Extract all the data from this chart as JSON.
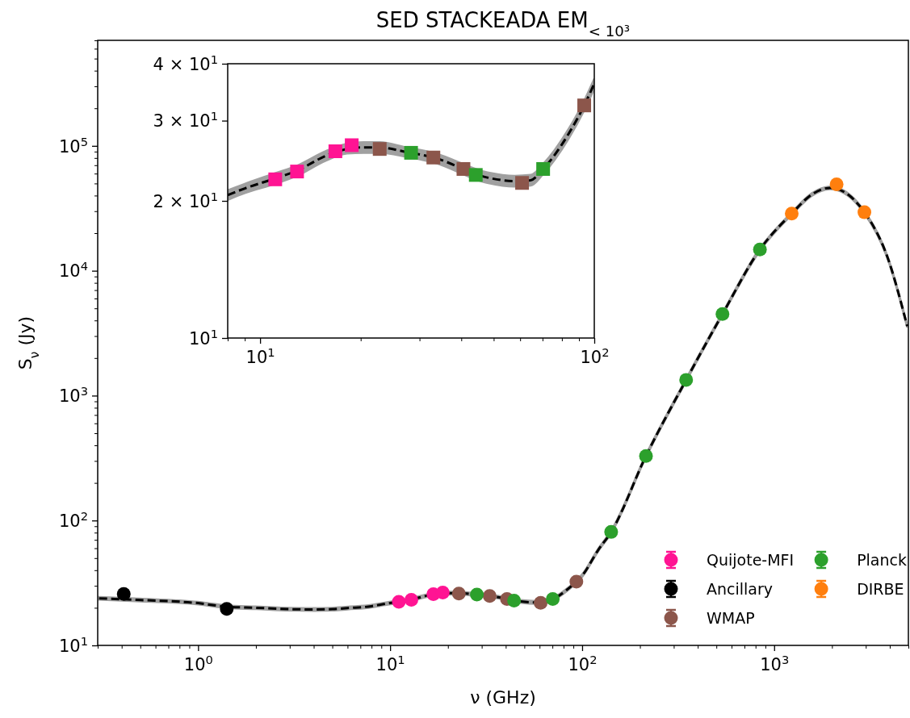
{
  "chart_data": [
    {
      "type": "scatter",
      "title": "SED STACKEADA EM$_{< 10³}$",
      "xlabel": "ν (GHz)",
      "ylabel": "S$_{ν}$ (Jy)",
      "log": "xy",
      "xlim": [
        0.3,
        5000
      ],
      "ylim": [
        10,
        700000
      ],
      "xticks": [
        {
          "value": 0.3,
          "label": null
        },
        {
          "value": 0.4,
          "label": null
        },
        {
          "value": 0.5,
          "label": null
        },
        {
          "value": 0.6,
          "label": null
        },
        {
          "value": 0.7,
          "label": null
        },
        {
          "value": 0.8,
          "label": null
        },
        {
          "value": 0.9,
          "label": null
        },
        {
          "value": 1,
          "label": "10$^{0}$"
        },
        {
          "value": 2,
          "label": null
        },
        {
          "value": 3,
          "label": null
        },
        {
          "value": 4,
          "label": null
        },
        {
          "value": 5,
          "label": null
        },
        {
          "value": 6,
          "label": null
        },
        {
          "value": 7,
          "label": null
        },
        {
          "value": 8,
          "label": null
        },
        {
          "value": 9,
          "label": null
        },
        {
          "value": 10,
          "label": "10$^{1}$"
        },
        {
          "value": 20,
          "label": null
        },
        {
          "value": 30,
          "label": null
        },
        {
          "value": 40,
          "label": null
        },
        {
          "value": 50,
          "label": null
        },
        {
          "value": 60,
          "label": null
        },
        {
          "value": 70,
          "label": null
        },
        {
          "value": 80,
          "label": null
        },
        {
          "value": 90,
          "label": null
        },
        {
          "value": 100,
          "label": "10$^{2}$"
        },
        {
          "value": 200,
          "label": null
        },
        {
          "value": 300,
          "label": null
        },
        {
          "value": 400,
          "label": null
        },
        {
          "value": 500,
          "label": null
        },
        {
          "value": 600,
          "label": null
        },
        {
          "value": 700,
          "label": null
        },
        {
          "value": 800,
          "label": null
        },
        {
          "value": 900,
          "label": null
        },
        {
          "value": 1000,
          "label": "10$^{3}$"
        },
        {
          "value": 2000,
          "label": null
        },
        {
          "value": 3000,
          "label": null
        },
        {
          "value": 4000,
          "label": null
        },
        {
          "value": 5000,
          "label": null
        }
      ],
      "yticks": [
        {
          "value": 10,
          "label": "10$^{1}$"
        },
        {
          "value": 20,
          "label": null
        },
        {
          "value": 30,
          "label": null
        },
        {
          "value": 40,
          "label": null
        },
        {
          "value": 50,
          "label": null
        },
        {
          "value": 60,
          "label": null
        },
        {
          "value": 70,
          "label": null
        },
        {
          "value": 80,
          "label": null
        },
        {
          "value": 90,
          "label": null
        },
        {
          "value": 100,
          "label": "10$^{2}$"
        },
        {
          "value": 200,
          "label": null
        },
        {
          "value": 300,
          "label": null
        },
        {
          "value": 400,
          "label": null
        },
        {
          "value": 500,
          "label": null
        },
        {
          "value": 600,
          "label": null
        },
        {
          "value": 700,
          "label": null
        },
        {
          "value": 800,
          "label": null
        },
        {
          "value": 900,
          "label": null
        },
        {
          "value": 1000,
          "label": "10$^{3}$"
        },
        {
          "value": 2000,
          "label": null
        },
        {
          "value": 3000,
          "label": null
        },
        {
          "value": 4000,
          "label": null
        },
        {
          "value": 5000,
          "label": null
        },
        {
          "value": 6000,
          "label": null
        },
        {
          "value": 7000,
          "label": null
        },
        {
          "value": 8000,
          "label": null
        },
        {
          "value": 9000,
          "label": null
        },
        {
          "value": 10000,
          "label": "10$^{4}$"
        },
        {
          "value": 20000,
          "label": null
        },
        {
          "value": 30000,
          "label": null
        },
        {
          "value": 40000,
          "label": null
        },
        {
          "value": 50000,
          "label": null
        },
        {
          "value": 60000,
          "label": null
        },
        {
          "value": 70000,
          "label": null
        },
        {
          "value": 80000,
          "label": null
        },
        {
          "value": 90000,
          "label": null
        },
        {
          "value": 100000,
          "label": "10$^{5}$"
        },
        {
          "value": 200000,
          "label": null
        },
        {
          "value": 300000,
          "label": null
        },
        {
          "value": 400000,
          "label": null
        },
        {
          "value": 500000,
          "label": null
        },
        {
          "value": 600000,
          "label": null
        },
        {
          "value": 700000,
          "label": null
        }
      ],
      "grid": false,
      "legend": "bottom right",
      "marker": "circle",
      "series": [
        {
          "type": "line",
          "color": "#000000",
          "line_style": "dashed",
          "marker": "none",
          "x": [
            0.305,
            0.5,
            1,
            1.41,
            2,
            3,
            4.04,
            5,
            6,
            8,
            9,
            11.1,
            12.9,
            15.7,
            20.4,
            22.8,
            27.4,
            33,
            39.7,
            47.9,
            57.7,
            70.3,
            83.6,
            93.3,
            100,
            121,
            141.6,
            215,
            348,
            538,
            843,
            1234,
            1574,
            1954,
            2951,
            3890,
            4930
          ],
          "values": [
            23.8,
            23.1,
            21.8,
            20.4,
            20.0,
            19.5,
            19.4,
            19.5,
            19.9,
            20.6,
            21.3,
            22.4,
            23.3,
            25.1,
            26.2,
            26.2,
            25.6,
            24.9,
            23.8,
            22.5,
            22.1,
            23.5,
            28.0,
            32.4,
            36.2,
            57.8,
            81,
            329,
            1337,
            4500,
            14800,
            28700,
            40900,
            46100,
            29400,
            12850,
            3600
          ],
          "lower": [
            23.2,
            22.5,
            21.3,
            19.9,
            19.5,
            19.0,
            18.9,
            19.0,
            19.4,
            20.1,
            20.8,
            21.8,
            22.7,
            24.5,
            25.5,
            25.5,
            25.0,
            24.3,
            23.2,
            21.9,
            21.5,
            22.9,
            27.3,
            31.6,
            35.3,
            56.4,
            79,
            321,
            1304,
            4390,
            14430,
            27980,
            39880,
            44950,
            28670,
            12530,
            3510
          ],
          "upper": [
            24.4,
            23.7,
            22.3,
            20.9,
            20.5,
            20.0,
            19.9,
            20.0,
            20.4,
            21.1,
            21.8,
            23.0,
            23.9,
            25.7,
            26.9,
            26.9,
            26.2,
            25.5,
            24.4,
            23.1,
            22.7,
            24.1,
            28.7,
            33.2,
            37.1,
            59.2,
            83,
            337,
            1370,
            4610,
            15170,
            29420,
            41920,
            47250,
            30140,
            13170,
            3690
          ]
        },
        {
          "name": "Quijote-MFI",
          "color": "#ff1493",
          "x": [
            11.1,
            12.9,
            16.8,
            18.8
          ],
          "values": [
            22.3,
            23.2,
            25.7,
            26.5
          ]
        },
        {
          "name": "Ancillary",
          "color": "#000000",
          "x": [
            0.41,
            1.41
          ],
          "values": [
            25.8,
            19.6
          ]
        },
        {
          "name": "WMAP",
          "color": "#8c564b",
          "x": [
            22.8,
            33,
            40.6,
            60.8,
            93.3
          ],
          "values": [
            26.0,
            24.9,
            23.5,
            21.9,
            32.4
          ]
        },
        {
          "name": "Planck",
          "color": "#2ca02c",
          "x": [
            28.3,
            44.2,
            70.3,
            141.6,
            215,
            348,
            538,
            843
          ],
          "values": [
            25.5,
            22.8,
            23.5,
            81,
            329,
            1337,
            4500,
            14800
          ]
        },
        {
          "name": "DIRBE",
          "color": "#ff7f0e",
          "x": [
            1234,
            2114,
            2951
          ],
          "values": [
            28700,
            49200,
            29400
          ]
        }
      ]
    },
    {
      "type": "scatter",
      "log": "xy",
      "xlim": [
        8,
        100
      ],
      "ylim": [
        10,
        40
      ],
      "xticks": [
        {
          "value": 8,
          "label": null
        },
        {
          "value": 9,
          "label": null
        },
        {
          "value": 10,
          "label": "10$^{1}$"
        },
        {
          "value": 20,
          "label": null
        },
        {
          "value": 30,
          "label": null
        },
        {
          "value": 40,
          "label": null
        },
        {
          "value": 50,
          "label": null
        },
        {
          "value": 60,
          "label": null
        },
        {
          "value": 70,
          "label": null
        },
        {
          "value": 80,
          "label": null
        },
        {
          "value": 90,
          "label": null
        },
        {
          "value": 100,
          "label": "10$^{2}$"
        }
      ],
      "yticks": [
        {
          "value": 10,
          "label": "10$^{1}$"
        },
        {
          "value": 20,
          "label": "2 × 10$^{1}$"
        },
        {
          "value": 30,
          "label": "3 × 10$^{1}$"
        },
        {
          "value": 40,
          "label": "4 × 10$^{1}$"
        }
      ],
      "grid": false,
      "legend": false,
      "marker": "square",
      "series": [
        {
          "type": "line",
          "color": "#000000",
          "line_style": "dashed",
          "marker": "none",
          "x": [
            8,
            9,
            11.1,
            12.9,
            15.7,
            18.2,
            20.4,
            22.8,
            27.4,
            33,
            47.9,
            57.7,
            64.5,
            70.3,
            83.6,
            93.3,
            100
          ],
          "values": [
            20.6,
            21.3,
            22.4,
            23.3,
            25.1,
            26.0,
            26.2,
            26.2,
            25.6,
            24.9,
            22.5,
            22.1,
            22.2,
            23.5,
            28.0,
            32.4,
            36.2
          ],
          "lower": [
            20.1,
            20.8,
            21.8,
            22.7,
            24.5,
            25.4,
            25.5,
            25.5,
            25.0,
            24.3,
            21.9,
            21.5,
            21.6,
            22.9,
            27.3,
            31.6,
            35.3
          ],
          "upper": [
            21.1,
            21.8,
            23.0,
            23.9,
            25.7,
            26.7,
            26.9,
            26.9,
            26.2,
            25.5,
            23.1,
            22.7,
            22.8,
            24.1,
            28.7,
            33.2,
            37.1
          ]
        },
        {
          "color": "#ff1493",
          "x": [
            11.1,
            12.9,
            16.8,
            18.8
          ],
          "values": [
            22.3,
            23.2,
            25.7,
            26.5
          ]
        },
        {
          "color": "#8c564b",
          "x": [
            22.8,
            33,
            40.6,
            60.8,
            93.3
          ],
          "values": [
            26.0,
            24.9,
            23.5,
            21.9,
            32.4
          ]
        },
        {
          "color": "#2ca02c",
          "x": [
            28.3,
            44.2,
            70.3
          ],
          "values": [
            25.5,
            22.8,
            23.5
          ]
        }
      ]
    }
  ]
}
